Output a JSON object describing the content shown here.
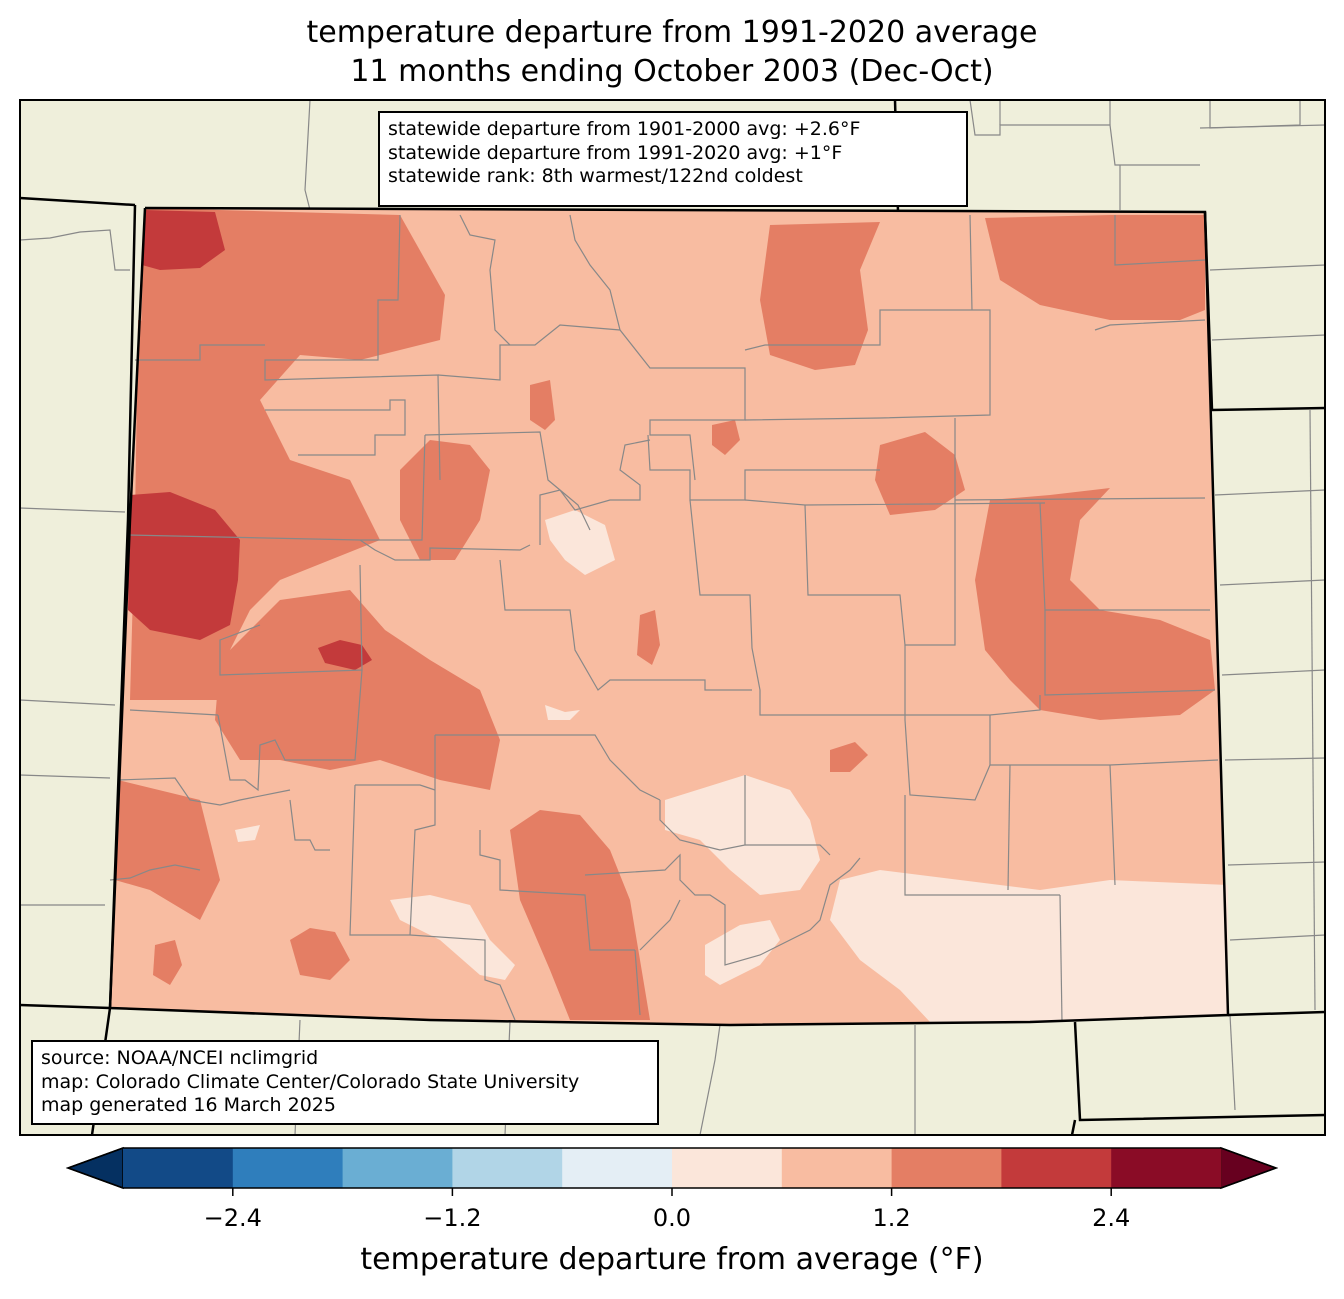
{
  "title": {
    "line1": "temperature departure from 1991-2020 average",
    "line2": "11 months ending October 2003 (Dec-Oct)"
  },
  "stats": {
    "line1": "statewide departure from 1901-2000 avg: +2.6°F",
    "line2": "statewide departure from 1991-2020 avg: +1°F",
    "line3": "statewide rank: 8th warmest/122nd coldest"
  },
  "source": {
    "line1": "source: NOAA/NCEI nclimgrid",
    "line2": "map: Colorado Climate Center/Colorado State University",
    "line3": "map generated 16 March 2025"
  },
  "colorbar": {
    "label": "temperature departure from average (°F)",
    "bounds": [
      -3.0,
      -2.4,
      -1.8,
      -1.2,
      -0.6,
      0.0,
      0.6,
      1.2,
      1.8,
      2.4,
      3.0
    ],
    "colors": [
      "#124a87",
      "#2f7ebc",
      "#6aaed3",
      "#b1d5e7",
      "#e4eef5",
      "#fbe6da",
      "#f8bca1",
      "#e47e64",
      "#c33a3b",
      "#8a0c26"
    ],
    "under_color": "#053061",
    "over_color": "#67001f",
    "ticks": [
      "−2.4",
      "−1.2",
      "0.0",
      "1.2",
      "2.4"
    ],
    "tick_values": [
      -2.4,
      -1.2,
      0.0,
      1.2,
      2.4
    ]
  },
  "map_colors": {
    "land": "#efefdb",
    "base": "#f8bca1",
    "warm": "#e47e64",
    "hot": "#c33a3b",
    "mild": "#fbe6da",
    "cool": "#e4eef5",
    "county_line": "#888888",
    "state_line": "#000000"
  }
}
